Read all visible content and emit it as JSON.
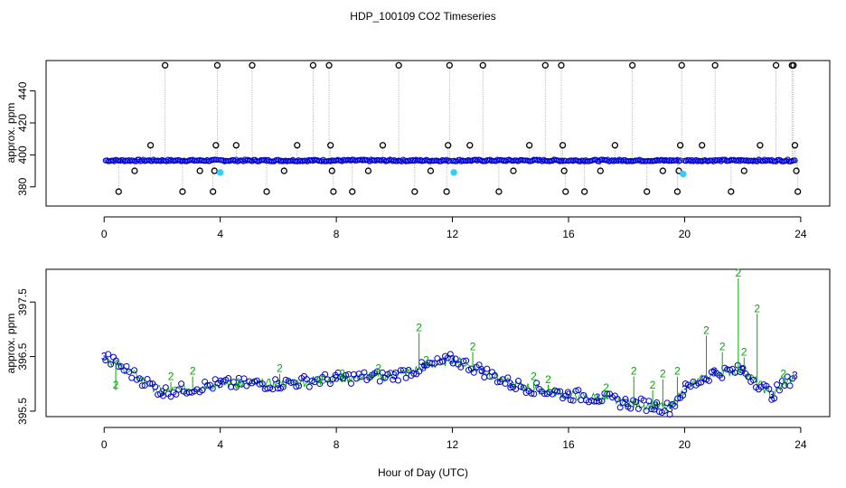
{
  "chart_data": {
    "type": "scatter",
    "title": "HDP_100109  CO2 Timeseries",
    "xlabel": "Hour of Day (UTC)",
    "panels": [
      {
        "ylabel": "approx. ppm",
        "xlim": [
          -2,
          25
        ],
        "ylim": [
          368,
          459
        ],
        "xticks": [
          0,
          4,
          8,
          12,
          16,
          20,
          24
        ],
        "yticks": [
          380,
          400,
          420,
          440
        ],
        "baseline_series": {
          "name": "blue circles",
          "color": "#0000cc",
          "level": 396.5,
          "segments": [
            [
              0.05,
              3.9
            ],
            [
              4.0,
              7.95
            ],
            [
              8.0,
              11.95
            ],
            [
              12.0,
              15.95
            ],
            [
              16.0,
              19.9
            ],
            [
              20.0,
              23.85
            ]
          ]
        },
        "outlier_series": {
          "name": "black circles",
          "color": "#000000",
          "x": [
            0.5,
            1.05,
            1.6,
            2.1,
            2.7,
            3.3,
            3.75,
            3.8,
            3.85,
            3.9,
            4.55,
            5.1,
            5.6,
            6.2,
            6.65,
            7.2,
            7.75,
            7.8,
            7.85,
            7.9,
            8.55,
            9.1,
            9.6,
            10.15,
            10.7,
            11.25,
            11.8,
            11.85,
            11.9,
            12.6,
            13.05,
            13.6,
            14.1,
            14.65,
            15.2,
            15.75,
            15.8,
            15.85,
            15.9,
            16.55,
            17.1,
            17.6,
            18.2,
            18.7,
            19.25,
            19.75,
            19.8,
            19.85,
            19.9,
            20.6,
            21.05,
            21.6,
            22.05,
            22.6,
            23.15,
            23.7,
            23.75,
            23.8,
            23.85,
            23.9
          ],
          "y": [
            377,
            390,
            406,
            456,
            377,
            390,
            377,
            390,
            406,
            456,
            406,
            456,
            377,
            390,
            406,
            456,
            456,
            406,
            390,
            377,
            377,
            390,
            406,
            456,
            377,
            390,
            377,
            406,
            456,
            406,
            456,
            377,
            390,
            406,
            456,
            456,
            406,
            390,
            377,
            377,
            390,
            406,
            456,
            377,
            390,
            377,
            390,
            406,
            456,
            406,
            456,
            377,
            390,
            406,
            456,
            456,
            456,
            406,
            390,
            377
          ]
        },
        "highlight_series": {
          "name": "cyan points",
          "color": "#33ccff",
          "x": [
            4.0,
            12.05,
            19.95
          ],
          "y": [
            389,
            389,
            388
          ]
        }
      },
      {
        "ylabel": "approx. ppm",
        "xlim": [
          -2,
          25
        ],
        "ylim": [
          395.4,
          398.1
        ],
        "xticks": [
          0,
          4,
          8,
          12,
          16,
          20,
          24
        ],
        "yticks": [
          395.5,
          396.5,
          397.5
        ],
        "series": [
          {
            "name": "3",
            "marker": "circle",
            "color": "#0000cc",
            "x": [
              0,
              2,
              4,
              6,
              8,
              10,
              11,
              12,
              13,
              14,
              16,
              17,
              18,
              19,
              19.5,
              20,
              21,
              22,
              23,
              23.8
            ],
            "y": [
              396.5,
              395.85,
              396.0,
              396.0,
              396.1,
              396.15,
              396.3,
              396.45,
              396.25,
              396.0,
              395.8,
              395.75,
              395.65,
              395.6,
              395.55,
              395.9,
              396.2,
              396.25,
              395.8,
              396.15
            ]
          },
          {
            "name": "2",
            "marker": "digit",
            "color": "#00aa00",
            "x": [
              0.4,
              2.3,
              3.05,
              4.6,
              6.05,
              7.45,
              8.2,
              9.45,
              10.85,
              11.1,
              12.7,
              14.8,
              15.3,
              17.3,
              18.25,
              18.9,
              19.25,
              19.75,
              20.75,
              21.3,
              21.85,
              22.05,
              22.5,
              23.4
            ],
            "y": [
              395.95,
              396.1,
              396.2,
              396.0,
              396.25,
              396.05,
              396.15,
              396.25,
              397.0,
              396.4,
              396.65,
              396.1,
              396.05,
              395.9,
              396.2,
              395.95,
              396.15,
              396.2,
              396.95,
              396.65,
              398.0,
              396.55,
              397.35,
              396.15
            ]
          }
        ]
      }
    ]
  }
}
